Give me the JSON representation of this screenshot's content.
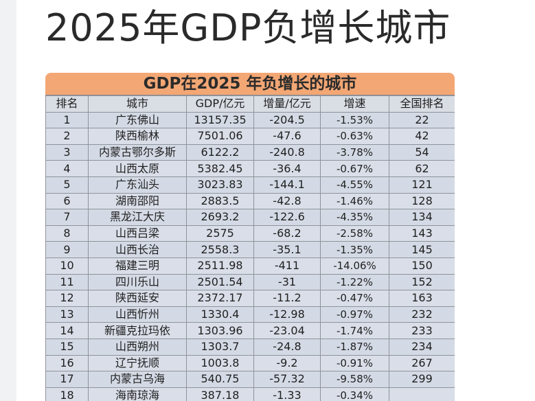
{
  "page_title": "2025年GDP负增长城市",
  "table": {
    "title": "GDP在2025 年负增长的城市",
    "headers": [
      "排名",
      "城市",
      "GDP/亿元",
      "增量/亿元",
      "增速",
      "全国排名"
    ],
    "rows": [
      [
        "1",
        "广东佛山",
        "13157.35",
        "-204.5",
        "-1.53%",
        "22"
      ],
      [
        "2",
        "陕西榆林",
        "7501.06",
        "-47.6",
        "-0.63%",
        "42"
      ],
      [
        "3",
        "内蒙古鄂尔多斯",
        "6122.2",
        "-240.8",
        "-3.78%",
        "54"
      ],
      [
        "4",
        "山西太原",
        "5382.45",
        "-36.4",
        "-0.67%",
        "62"
      ],
      [
        "5",
        "广东汕头",
        "3023.83",
        "-144.1",
        "-4.55%",
        "121"
      ],
      [
        "6",
        "湖南邵阳",
        "2883.5",
        "-42.8",
        "-1.46%",
        "128"
      ],
      [
        "7",
        "黑龙江大庆",
        "2693.2",
        "-122.6",
        "-4.35%",
        "134"
      ],
      [
        "8",
        "山西吕梁",
        "2575",
        "-68.2",
        "-2.58%",
        "143"
      ],
      [
        "9",
        "山西长治",
        "2558.3",
        "-35.1",
        "-1.35%",
        "145"
      ],
      [
        "10",
        "福建三明",
        "2511.98",
        "-411",
        "-14.06%",
        "150"
      ],
      [
        "11",
        "四川乐山",
        "2501.54",
        "-31",
        "-1.22%",
        "152"
      ],
      [
        "12",
        "陕西延安",
        "2372.17",
        "-11.2",
        "-0.47%",
        "163"
      ],
      [
        "13",
        "山西忻州",
        "1330.4",
        "-12.98",
        "-0.97%",
        "232"
      ],
      [
        "14",
        "新疆克拉玛依",
        "1303.96",
        "-23.04",
        "-1.74%",
        "233"
      ],
      [
        "15",
        "山西朔州",
        "1303.7",
        "-24.8",
        "-1.87%",
        "234"
      ],
      [
        "16",
        "辽宁抚顺",
        "1003.8",
        "-9.2",
        "-0.91%",
        "267"
      ],
      [
        "17",
        "内蒙古乌海",
        "540.75",
        "-57.32",
        "-9.58%",
        "299"
      ],
      [
        "18",
        "海南琼海",
        "387.18",
        "-1.33",
        "-0.34%",
        ""
      ]
    ]
  }
}
